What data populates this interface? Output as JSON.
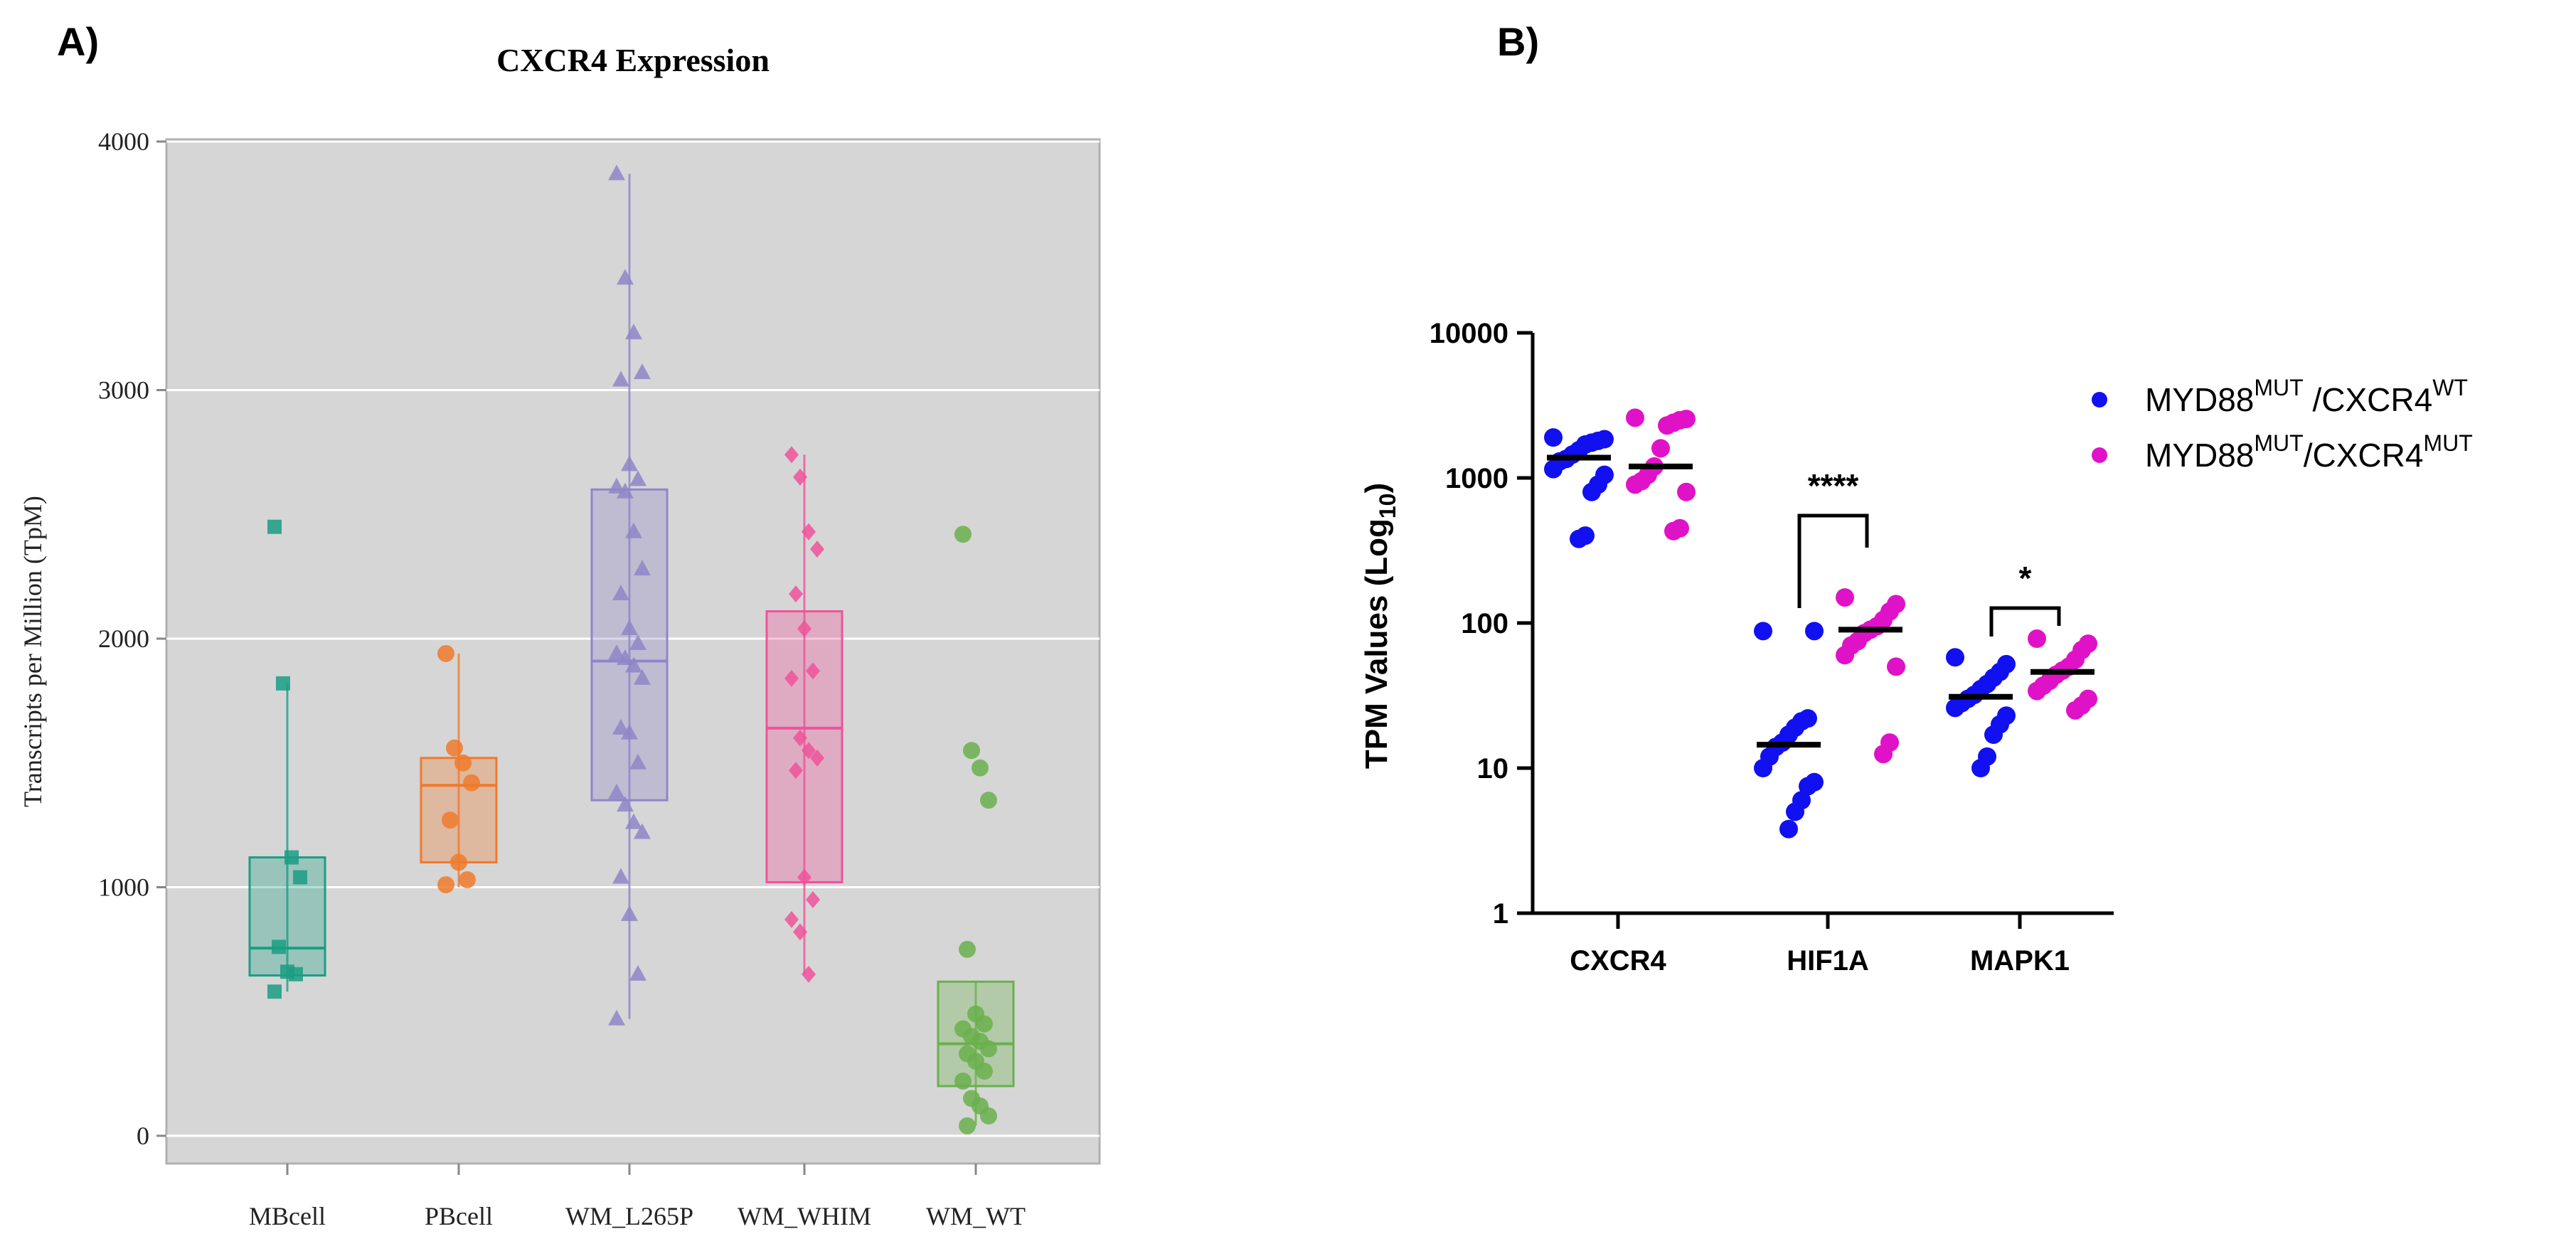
{
  "panels": {
    "a_label": "A)",
    "b_label": "B)"
  },
  "chart_data": [
    {
      "type": "box",
      "title": "CXCR4 Expression",
      "xlabel": "",
      "ylabel": "Transcripts per Million (TpM)",
      "ylim": [
        0,
        4000
      ],
      "yticks": [
        0,
        1000,
        2000,
        3000,
        4000
      ],
      "grid": true,
      "categories": [
        "MBcell",
        "PBcell",
        "WM_L265P",
        "WM_WHIM",
        "WM_WT"
      ],
      "groups": [
        {
          "name": "MBcell",
          "color": "#1a9e84",
          "marker": "square",
          "q1": 645,
          "median": 755,
          "q3": 1120,
          "whisker_low": 580,
          "whisker_high": 1820,
          "points": [
            2450,
            1820,
            1120,
            1040,
            760,
            660,
            650,
            580
          ]
        },
        {
          "name": "PBcell",
          "color": "#f07a2c",
          "marker": "circle",
          "q1": 1100,
          "median": 1410,
          "q3": 1520,
          "whisker_low": 1000,
          "whisker_high": 1940,
          "points": [
            1940,
            1560,
            1500,
            1420,
            1270,
            1100,
            1030,
            1010
          ]
        },
        {
          "name": "WM_L265P",
          "color": "#8e86c8",
          "marker": "triangle",
          "q1": 1350,
          "median": 1910,
          "q3": 2600,
          "whisker_low": 470,
          "whisker_high": 3870,
          "points": [
            3870,
            3450,
            3230,
            3070,
            3040,
            2700,
            2640,
            2610,
            2590,
            2430,
            2280,
            2180,
            2040,
            1980,
            1940,
            1920,
            1890,
            1840,
            1640,
            1620,
            1500,
            1380,
            1330,
            1260,
            1220,
            1040,
            890,
            650,
            470
          ]
        },
        {
          "name": "WM_WHIM",
          "color": "#f0529a",
          "marker": "diamond",
          "q1": 1020,
          "median": 1640,
          "q3": 2110,
          "whisker_low": 650,
          "whisker_high": 2740,
          "points": [
            2740,
            2650,
            2430,
            2360,
            2180,
            2040,
            1870,
            1840,
            1600,
            1550,
            1520,
            1470,
            1040,
            950,
            870,
            820,
            650
          ]
        },
        {
          "name": "WM_WT",
          "color": "#6ab04c",
          "marker": "circle",
          "q1": 200,
          "median": 370,
          "q3": 620,
          "whisker_low": 40,
          "whisker_high": 620,
          "points": [
            2420,
            1550,
            1480,
            1350,
            750,
            490,
            450,
            430,
            400,
            380,
            350,
            330,
            300,
            260,
            220,
            150,
            120,
            80,
            40
          ]
        }
      ]
    },
    {
      "type": "scatter",
      "xlabel": "",
      "ylabel": "TPM Values (Log",
      "ylabel_sub": "10",
      "ylabel_end": ")",
      "yscale": "log",
      "ylim": [
        1,
        10000
      ],
      "yticks": [
        1,
        10,
        100,
        1000,
        10000
      ],
      "ytick_labels": [
        "1",
        "10",
        "100",
        "1000",
        "10000"
      ],
      "categories": [
        "CXCR4",
        "HIF1A",
        "MAPK1"
      ],
      "series": [
        {
          "name": "MYD88 MUT / CXCR4 WT",
          "color": "#1010f0",
          "medians": [
            1380,
            14.5,
            31
          ],
          "points": [
            [
              1900,
              1850,
              1800,
              1750,
              1700,
              1550,
              1450,
              1350,
              1300,
              1150,
              1050,
              900,
              800,
              400,
              380
            ],
            [
              88,
              88,
              22,
              21,
              19,
              17,
              15,
              14,
              12,
              10,
              8,
              7.5,
              6,
              5,
              3.8
            ],
            [
              58,
              52,
              46,
              42,
              38,
              35,
              32,
              30,
              28,
              26,
              23,
              20,
              17,
              12,
              10
            ]
          ]
        },
        {
          "name": "MYD88 MUT / CXCR4 MUT",
          "color": "#e012c8",
          "medians": [
            1200,
            90,
            46
          ],
          "points": [
            [
              2600,
              2550,
              2500,
              2400,
              2300,
              1600,
              1200,
              1050,
              950,
              900,
              800,
              450,
              430
            ],
            [
              150,
              135,
              120,
              105,
              95,
              90,
              85,
              75,
              70,
              60,
              50,
              15,
              12.5
            ],
            [
              78,
              72,
              65,
              56,
              50,
              47,
              44,
              40,
              37,
              34,
              30,
              27,
              25
            ]
          ]
        }
      ],
      "significance": [
        {
          "category": "HIF1A",
          "label": "****"
        },
        {
          "category": "MAPK1",
          "label": "*"
        }
      ],
      "legend": [
        {
          "pre": "MYD88",
          "sup1": "MUT",
          "mid": " /CXCR4",
          "sup2": "WT"
        },
        {
          "pre": "MYD88",
          "sup1": "MUT",
          "mid": "/CXCR4",
          "sup2": "MUT"
        }
      ]
    }
  ]
}
